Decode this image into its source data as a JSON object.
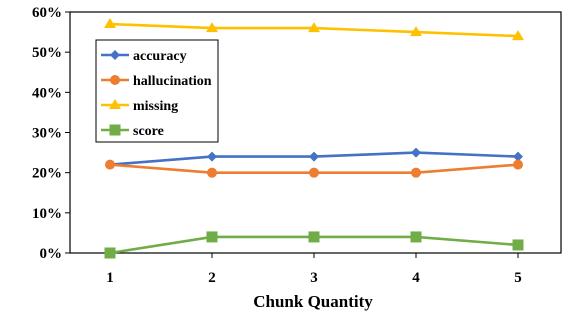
{
  "chart_data": {
    "type": "line",
    "title": "",
    "xlabel": "Chunk Quantity",
    "ylabel": "",
    "categories": [
      "1",
      "2",
      "3",
      "4",
      "5"
    ],
    "ylim": [
      0,
      60
    ],
    "yticks": [
      0,
      10,
      20,
      30,
      40,
      50,
      60
    ],
    "ytick_suffix": "%",
    "grid": false,
    "legend": {
      "placement": "upper-left"
    },
    "series": [
      {
        "name": "accuracy",
        "values": [
          22,
          24,
          24,
          25,
          24
        ],
        "color": "#4472C4",
        "marker": "diamond"
      },
      {
        "name": "hallucination",
        "values": [
          22,
          20,
          20,
          20,
          22
        ],
        "color": "#ED7D31",
        "marker": "circle"
      },
      {
        "name": "missing",
        "values": [
          57,
          56,
          56,
          55,
          54
        ],
        "color": "#FFC000",
        "marker": "triangle"
      },
      {
        "name": "score",
        "values": [
          0,
          4,
          4,
          4,
          2
        ],
        "color": "#70AD47",
        "marker": "square"
      }
    ]
  }
}
